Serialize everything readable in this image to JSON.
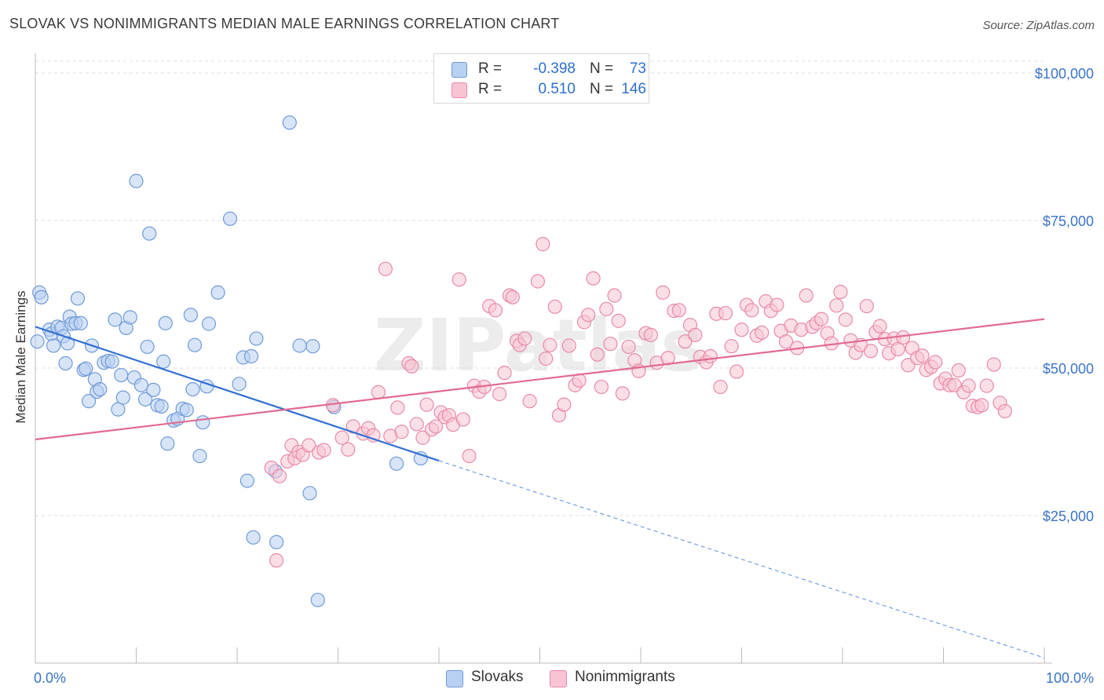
{
  "title": "SLOVAK VS NONIMMIGRANTS MEDIAN MALE EARNINGS CORRELATION CHART",
  "source": "Source: ZipAtlas.com",
  "watermark": "ZIPatlas",
  "colors": {
    "slovaks_fill": "#b8d0f2",
    "slovaks_stroke": "#6f9ad8",
    "slovaks_line": "#2f6fd1",
    "nonimm_fill": "#f8c4d4",
    "nonimm_stroke": "#e88aa8",
    "nonimm_line": "#e26a92",
    "tick_label": "#3a73c8",
    "grid": "#dcdcdc"
  },
  "legend": {
    "rows": [
      {
        "r_label": "R =",
        "r_value": "-0.398",
        "n_label": "N =",
        "n_value": "73"
      },
      {
        "r_label": "R =",
        "r_value": "0.510",
        "n_label": "N =",
        "n_value": "146"
      }
    ]
  },
  "bottom_legend": [
    "Slovaks",
    "Nonimmigrants"
  ],
  "chart_data": {
    "type": "scatter",
    "title": "SLOVAK VS NONIMMIGRANTS MEDIAN MALE EARNINGS CORRELATION CHART",
    "xlabel": "",
    "ylabel": "Median Male Earnings",
    "x_tick_labels": [
      "0.0%",
      "100.0%"
    ],
    "y_tick_labels": [
      "$25,000",
      "$50,000",
      "$75,000",
      "$100,000"
    ],
    "y_ticks": [
      25000,
      50000,
      75000,
      100000
    ],
    "xlim": [
      0,
      100
    ],
    "ylim": [
      0,
      102000
    ],
    "grid": true,
    "legend_position": "top-center",
    "series": [
      {
        "name": "Slovaks",
        "r": -0.398,
        "n": 73,
        "trend": {
          "x0": 0,
          "y0": 57000,
          "x1": 40,
          "y1": 34300,
          "dashed_to_x": 100,
          "dashed_to_y": 900
        },
        "points": [
          [
            0.2,
            54500
          ],
          [
            0.4,
            62800
          ],
          [
            0.6,
            62000
          ],
          [
            1.4,
            56500
          ],
          [
            1.6,
            55800
          ],
          [
            1.8,
            53800
          ],
          [
            2.2,
            57000
          ],
          [
            2.6,
            56800
          ],
          [
            2.8,
            55400
          ],
          [
            3.0,
            50800
          ],
          [
            3.2,
            54200
          ],
          [
            3.4,
            58700
          ],
          [
            3.6,
            57500
          ],
          [
            4.0,
            57600
          ],
          [
            4.2,
            61800
          ],
          [
            4.5,
            57600
          ],
          [
            4.8,
            49700
          ],
          [
            5.0,
            49900
          ],
          [
            5.3,
            44400
          ],
          [
            5.6,
            53800
          ],
          [
            5.9,
            48100
          ],
          [
            6.1,
            46000
          ],
          [
            6.4,
            46400
          ],
          [
            6.8,
            50900
          ],
          [
            7.2,
            51200
          ],
          [
            7.6,
            51100
          ],
          [
            7.9,
            58200
          ],
          [
            8.2,
            43000
          ],
          [
            8.5,
            48800
          ],
          [
            8.7,
            45000
          ],
          [
            9.0,
            56800
          ],
          [
            9.4,
            58600
          ],
          [
            9.8,
            48400
          ],
          [
            10.0,
            81700
          ],
          [
            10.5,
            47100
          ],
          [
            10.9,
            44700
          ],
          [
            11.1,
            53600
          ],
          [
            11.3,
            72800
          ],
          [
            11.7,
            46300
          ],
          [
            12.1,
            43700
          ],
          [
            12.5,
            43500
          ],
          [
            12.7,
            51100
          ],
          [
            12.9,
            57600
          ],
          [
            13.1,
            37200
          ],
          [
            13.7,
            41100
          ],
          [
            14.1,
            41400
          ],
          [
            14.6,
            43100
          ],
          [
            15.0,
            42900
          ],
          [
            15.4,
            59000
          ],
          [
            15.6,
            46400
          ],
          [
            15.8,
            53900
          ],
          [
            16.3,
            35100
          ],
          [
            16.6,
            40800
          ],
          [
            17.0,
            46900
          ],
          [
            17.2,
            57500
          ],
          [
            18.1,
            62800
          ],
          [
            19.3,
            75300
          ],
          [
            20.2,
            47300
          ],
          [
            20.6,
            51800
          ],
          [
            21.0,
            30900
          ],
          [
            21.4,
            52000
          ],
          [
            21.6,
            21300
          ],
          [
            21.9,
            55000
          ],
          [
            23.8,
            32500
          ],
          [
            23.9,
            20500
          ],
          [
            25.2,
            91600
          ],
          [
            26.2,
            53800
          ],
          [
            27.2,
            28800
          ],
          [
            27.5,
            53700
          ],
          [
            28.0,
            10700
          ],
          [
            29.6,
            43400
          ],
          [
            35.8,
            33800
          ],
          [
            38.2,
            34700
          ]
        ]
      },
      {
        "name": "Nonimmigrants",
        "r": 0.51,
        "n": 146,
        "trend": {
          "x0": 0,
          "y0": 37900,
          "x1": 100,
          "y1": 58300
        },
        "points": [
          [
            23.4,
            33100
          ],
          [
            23.9,
            17400
          ],
          [
            24.2,
            31700
          ],
          [
            25.0,
            34200
          ],
          [
            25.4,
            36900
          ],
          [
            25.7,
            34700
          ],
          [
            26.1,
            35800
          ],
          [
            26.5,
            35300
          ],
          [
            27.1,
            36900
          ],
          [
            28.1,
            35700
          ],
          [
            28.6,
            36100
          ],
          [
            29.5,
            43700
          ],
          [
            30.4,
            38200
          ],
          [
            31.0,
            36200
          ],
          [
            31.5,
            40100
          ],
          [
            32.5,
            38900
          ],
          [
            33.0,
            39800
          ],
          [
            33.5,
            38600
          ],
          [
            34.0,
            45900
          ],
          [
            34.7,
            66800
          ],
          [
            35.2,
            38500
          ],
          [
            35.9,
            43300
          ],
          [
            36.3,
            39200
          ],
          [
            37.0,
            50800
          ],
          [
            37.3,
            50300
          ],
          [
            37.8,
            40500
          ],
          [
            38.4,
            38200
          ],
          [
            38.8,
            43800
          ],
          [
            39.3,
            39600
          ],
          [
            39.7,
            40100
          ],
          [
            40.2,
            42500
          ],
          [
            40.6,
            41700
          ],
          [
            41.0,
            42000
          ],
          [
            41.4,
            40400
          ],
          [
            42.0,
            65000
          ],
          [
            42.4,
            41300
          ],
          [
            43.0,
            35100
          ],
          [
            43.5,
            47000
          ],
          [
            44.0,
            46000
          ],
          [
            44.5,
            46800
          ],
          [
            45.0,
            60500
          ],
          [
            45.6,
            59800
          ],
          [
            46.0,
            45600
          ],
          [
            46.5,
            49200
          ],
          [
            47.0,
            62300
          ],
          [
            47.3,
            62000
          ],
          [
            47.7,
            54600
          ],
          [
            48.0,
            53900
          ],
          [
            48.5,
            55000
          ],
          [
            49.0,
            44400
          ],
          [
            49.8,
            64700
          ],
          [
            50.3,
            71000
          ],
          [
            50.6,
            51600
          ],
          [
            51.0,
            53900
          ],
          [
            51.5,
            60400
          ],
          [
            51.9,
            42000
          ],
          [
            52.4,
            43800
          ],
          [
            52.9,
            53800
          ],
          [
            53.5,
            47100
          ],
          [
            53.9,
            47900
          ],
          [
            54.4,
            57800
          ],
          [
            54.8,
            59000
          ],
          [
            55.3,
            65200
          ],
          [
            55.7,
            52300
          ],
          [
            56.1,
            46800
          ],
          [
            56.6,
            60000
          ],
          [
            57.0,
            54100
          ],
          [
            57.4,
            62300
          ],
          [
            57.8,
            58000
          ],
          [
            58.2,
            45700
          ],
          [
            58.8,
            53600
          ],
          [
            59.4,
            51300
          ],
          [
            59.8,
            49500
          ],
          [
            60.5,
            55900
          ],
          [
            61.0,
            55600
          ],
          [
            61.6,
            50900
          ],
          [
            62.2,
            62800
          ],
          [
            62.7,
            51700
          ],
          [
            63.3,
            59700
          ],
          [
            63.8,
            59800
          ],
          [
            64.4,
            54500
          ],
          [
            64.9,
            57300
          ],
          [
            65.4,
            55600
          ],
          [
            65.9,
            51900
          ],
          [
            66.5,
            51000
          ],
          [
            66.9,
            52000
          ],
          [
            67.5,
            59200
          ],
          [
            67.9,
            46800
          ],
          [
            68.4,
            59300
          ],
          [
            69.0,
            53700
          ],
          [
            69.5,
            49400
          ],
          [
            70.0,
            56500
          ],
          [
            70.5,
            60700
          ],
          [
            71.0,
            59800
          ],
          [
            71.5,
            55500
          ],
          [
            72.0,
            56000
          ],
          [
            72.4,
            61300
          ],
          [
            72.9,
            59700
          ],
          [
            73.5,
            60700
          ],
          [
            73.9,
            56300
          ],
          [
            74.4,
            54500
          ],
          [
            74.9,
            57200
          ],
          [
            75.5,
            53400
          ],
          [
            75.9,
            56500
          ],
          [
            76.4,
            62300
          ],
          [
            77.0,
            57000
          ],
          [
            77.4,
            57600
          ],
          [
            77.9,
            58300
          ],
          [
            78.5,
            55900
          ],
          [
            78.9,
            54200
          ],
          [
            79.4,
            60600
          ],
          [
            79.8,
            62900
          ],
          [
            80.3,
            58200
          ],
          [
            80.8,
            54700
          ],
          [
            81.3,
            52600
          ],
          [
            81.8,
            53900
          ],
          [
            82.4,
            60500
          ],
          [
            82.8,
            52900
          ],
          [
            83.3,
            56100
          ],
          [
            83.7,
            57100
          ],
          [
            84.2,
            54900
          ],
          [
            84.6,
            52500
          ],
          [
            85.1,
            55000
          ],
          [
            85.5,
            53200
          ],
          [
            86.0,
            55200
          ],
          [
            86.5,
            50500
          ],
          [
            86.9,
            53400
          ],
          [
            87.4,
            51700
          ],
          [
            87.9,
            52100
          ],
          [
            88.3,
            49700
          ],
          [
            88.8,
            50200
          ],
          [
            89.2,
            51000
          ],
          [
            89.7,
            47400
          ],
          [
            90.2,
            48200
          ],
          [
            90.6,
            47100
          ],
          [
            91.1,
            47100
          ],
          [
            91.5,
            49600
          ],
          [
            92.0,
            45900
          ],
          [
            92.5,
            47000
          ],
          [
            92.9,
            43600
          ],
          [
            93.4,
            43400
          ],
          [
            93.8,
            43700
          ],
          [
            94.3,
            47000
          ],
          [
            95.0,
            50600
          ],
          [
            95.6,
            44100
          ],
          [
            96.1,
            42700
          ]
        ]
      }
    ]
  }
}
